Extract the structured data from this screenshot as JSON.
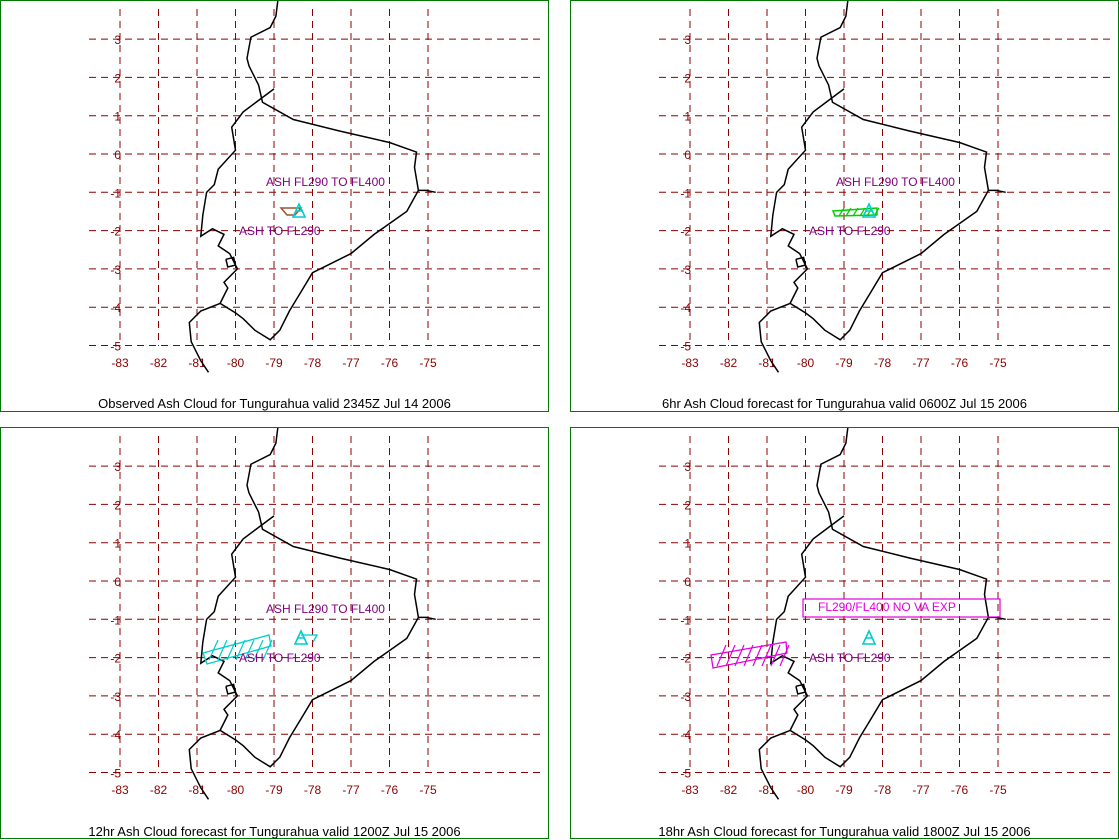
{
  "colors": {
    "grid": "#8b0000",
    "coast": "#000000",
    "labels": "#800080",
    "volcano": "#00cccc",
    "border": "#007a00",
    "obs_cloud": "#a0522d",
    "fc6_cloud": "#00cc00",
    "fc12_cloud": "#00cccc",
    "fc18_cloud": "#e000e0"
  },
  "axes": {
    "lat_labels": [
      "3",
      "2",
      "1",
      "0",
      "-1",
      "-2",
      "-3",
      "-4",
      "-5"
    ],
    "lon_labels": [
      "-83",
      "-82",
      "-81",
      "-80",
      "-79",
      "-78",
      "-77",
      "-76",
      "-75"
    ]
  },
  "panels": [
    {
      "id": "observed",
      "caption": "Observed Ash Cloud for Tungurahua valid 2345Z Jul 14 2006",
      "label_upper": "ASH FL290 TO FL400",
      "label_lower": "ASH TO FL290"
    },
    {
      "id": "fc6",
      "caption": "6hr Ash Cloud forecast for Tungurahua valid 0600Z Jul 15 2006",
      "label_upper": "ASH FL290 TO FL400",
      "label_lower": "ASH TO FL290"
    },
    {
      "id": "fc12",
      "caption": "12hr Ash Cloud forecast for Tungurahua valid 1200Z Jul 15 2006",
      "label_upper": "ASH FL290 TO FL400",
      "label_lower": "ASH TO FL290"
    },
    {
      "id": "fc18",
      "caption": "18hr Ash Cloud forecast for Tungurahua valid 1800Z Jul 15 2006",
      "label_upper": "FL290/FL400 NO VA EXP",
      "label_lower": "ASH TO FL290"
    }
  ]
}
